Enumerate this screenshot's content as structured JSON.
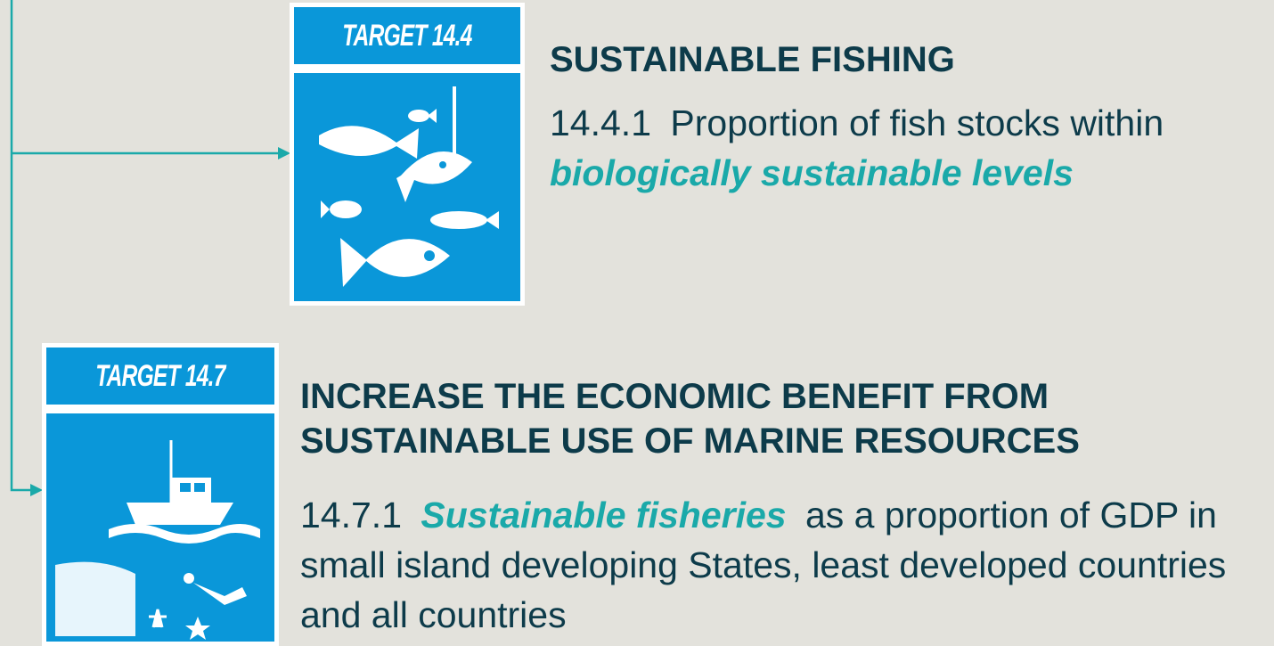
{
  "targets": [
    {
      "badge": "TARGET 14.4",
      "title": "SUSTAINABLE FISHING",
      "indicator": {
        "code": "14.4.1",
        "parts": [
          {
            "text": "Proportion of fish stocks within",
            "highlight": false
          },
          {
            "text": "biologically sustainable levels",
            "highlight": true
          }
        ]
      }
    },
    {
      "badge": "TARGET 14.7",
      "title": "INCREASE THE ECONOMIC BENEFIT FROM SUSTAINABLE USE OF MARINE RESOURCES",
      "indicator": {
        "code": "14.7.1",
        "parts": [
          {
            "text": "Sustainable fisheries",
            "highlight": true
          },
          {
            "text": "as a proportion of GDP in small island developing States, least developed countries and all countries",
            "highlight": false
          }
        ]
      }
    }
  ]
}
